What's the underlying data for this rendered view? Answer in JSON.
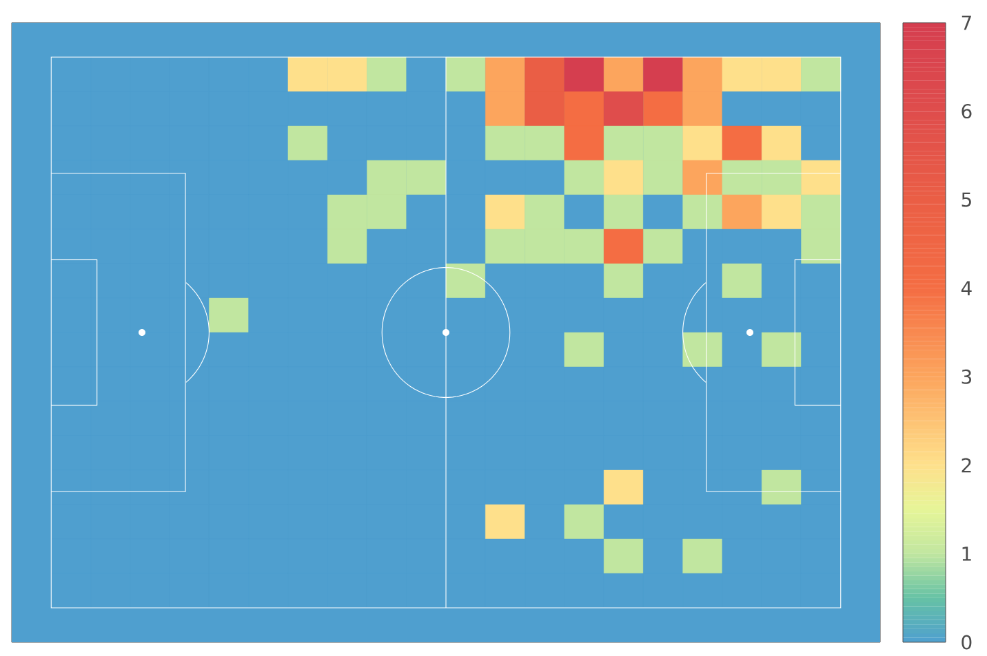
{
  "chart_data": {
    "type": "heatmap",
    "categories": [
      null,
      null,
      null,
      null,
      null,
      null,
      null,
      null,
      null,
      null,
      null,
      null,
      null,
      null,
      null,
      null,
      null,
      null,
      null,
      null
    ],
    "y_categories": [
      null,
      null,
      null,
      null,
      null,
      null,
      null,
      null,
      null,
      null,
      null,
      null,
      null,
      null,
      null,
      null
    ],
    "cells": [
      [
        0,
        0,
        0,
        0,
        0,
        0,
        2,
        2,
        1,
        0,
        1,
        3,
        5,
        7,
        3,
        7,
        3,
        2,
        2,
        1
      ],
      [
        0,
        0,
        0,
        0,
        0,
        0,
        0,
        0,
        0,
        0,
        0,
        3,
        5,
        4,
        6,
        4,
        3,
        0,
        0,
        0
      ],
      [
        0,
        0,
        0,
        0,
        0,
        0,
        1,
        0,
        0,
        0,
        0,
        1,
        1,
        4,
        1,
        1,
        2,
        4,
        2,
        0
      ],
      [
        0,
        0,
        0,
        0,
        0,
        0,
        0,
        0,
        1,
        1,
        0,
        0,
        0,
        1,
        2,
        1,
        3,
        1,
        1,
        2
      ],
      [
        0,
        0,
        0,
        0,
        0,
        0,
        0,
        1,
        1,
        0,
        0,
        2,
        1,
        0,
        1,
        0,
        1,
        3,
        2,
        1
      ],
      [
        0,
        0,
        0,
        0,
        0,
        0,
        0,
        1,
        0,
        0,
        0,
        1,
        1,
        1,
        4,
        1,
        0,
        0,
        0,
        1
      ],
      [
        0,
        0,
        0,
        0,
        0,
        0,
        0,
        0,
        0,
        0,
        1,
        0,
        0,
        0,
        1,
        0,
        0,
        1,
        0,
        0
      ],
      [
        0,
        0,
        0,
        0,
        1,
        0,
        0,
        0,
        0,
        0,
        0,
        0,
        0,
        0,
        0,
        0,
        0,
        0,
        0,
        0
      ],
      [
        0,
        0,
        0,
        0,
        0,
        0,
        0,
        0,
        0,
        0,
        0,
        0,
        0,
        1,
        0,
        0,
        1,
        0,
        1,
        0
      ],
      [
        0,
        0,
        0,
        0,
        0,
        0,
        0,
        0,
        0,
        0,
        0,
        0,
        0,
        0,
        0,
        0,
        0,
        0,
        0,
        0
      ],
      [
        0,
        0,
        0,
        0,
        0,
        0,
        0,
        0,
        0,
        0,
        0,
        0,
        0,
        0,
        0,
        0,
        0,
        0,
        0,
        0
      ],
      [
        0,
        0,
        0,
        0,
        0,
        0,
        0,
        0,
        0,
        0,
        0,
        0,
        0,
        0,
        0,
        0,
        0,
        0,
        0,
        0
      ],
      [
        0,
        0,
        0,
        0,
        0,
        0,
        0,
        0,
        0,
        0,
        0,
        0,
        0,
        0,
        2,
        0,
        0,
        0,
        1,
        0
      ],
      [
        0,
        0,
        0,
        0,
        0,
        0,
        0,
        0,
        0,
        0,
        0,
        2,
        0,
        1,
        0,
        0,
        0,
        0,
        0,
        0
      ],
      [
        0,
        0,
        0,
        0,
        0,
        0,
        0,
        0,
        0,
        0,
        0,
        0,
        0,
        0,
        1,
        0,
        1,
        0,
        0,
        0
      ],
      [
        0,
        0,
        0,
        0,
        0,
        0,
        0,
        0,
        0,
        0,
        0,
        0,
        0,
        0,
        0,
        0,
        0,
        0,
        0,
        0
      ]
    ],
    "clim": [
      0,
      7
    ],
    "cticks": [
      0,
      1,
      2,
      3,
      4,
      5,
      6,
      7
    ]
  }
}
